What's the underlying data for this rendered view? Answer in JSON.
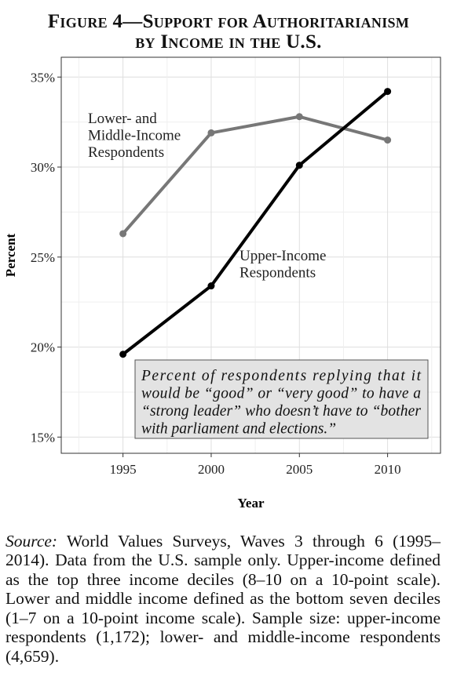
{
  "figure": {
    "title_line1": "Figure 4—Support for Authoritarianism",
    "title_line2": "by Income in the U.S."
  },
  "chart_data": {
    "type": "line",
    "xlabel": "Year",
    "ylabel": "Percent",
    "x": [
      1995,
      2000,
      2005,
      2010
    ],
    "x_ticks": [
      "1995",
      "2000",
      "2005",
      "2010"
    ],
    "xlim": [
      1991.5,
      2013
    ],
    "y_ticks": [
      "15%",
      "20%",
      "25%",
      "30%",
      "35%"
    ],
    "y_tick_values": [
      15,
      20,
      25,
      30,
      35
    ],
    "ylim": [
      14.1,
      36.1
    ],
    "grid": true,
    "series": [
      {
        "name": "Lower- and Middle-Income Respondents",
        "label_lines": [
          "Lower- and",
          "Middle-Income",
          "Respondents"
        ],
        "values": [
          26.3,
          31.9,
          32.8,
          31.5
        ],
        "color": "#777777"
      },
      {
        "name": "Upper-Income Respondents",
        "label_lines": [
          "Upper-Income",
          "Respondents"
        ],
        "values": [
          19.6,
          23.4,
          30.1,
          34.2
        ],
        "color": "#000000"
      }
    ],
    "annotation_lines": [
      "Percent  of  respondents  replying  that  it",
      "would be “good” or “very good” to have a",
      "“strong leader” who doesn’t have to “bother",
      "with parliament and elections.”"
    ]
  },
  "source": {
    "label": "Source:",
    "text": " World Values Surveys, Waves 3 through 6 (1995–2014). Data from the U.S. sample only. Upper-income defined as the top three income deciles (8–10 on a 10-point scale). Lower and middle income defined as the bottom seven deciles (1–7 on a 10-point income scale). Sample size: upper-income respondents (1,172); lower- and middle-income respondents (4,659)."
  }
}
